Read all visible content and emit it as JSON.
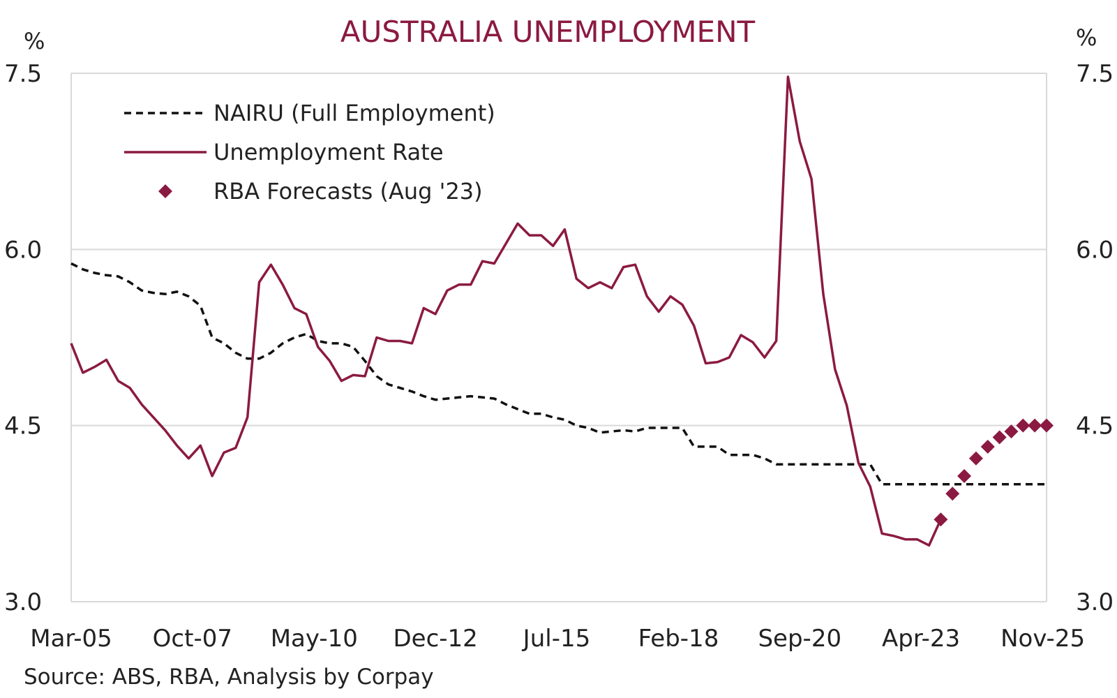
{
  "chart_data": {
    "type": "line",
    "title": "AUSTRALIA UNEMPLOYMENT",
    "y_unit_left": "%",
    "y_unit_right": "%",
    "ylim": [
      3.0,
      7.5
    ],
    "yticks": [
      "3.0",
      "4.5",
      "6.0",
      "7.5"
    ],
    "y_tick_values": [
      3.0,
      4.5,
      6.0,
      7.5
    ],
    "x_range": [
      2005.0,
      2025.75
    ],
    "xticks": [
      {
        "label": "Mar-05",
        "value": 2005.0
      },
      {
        "label": "Oct-07",
        "value": 2007.58
      },
      {
        "label": "May-10",
        "value": 2010.17
      },
      {
        "label": "Dec-12",
        "value": 2012.75
      },
      {
        "label": "Jul-15",
        "value": 2015.33
      },
      {
        "label": "Feb-18",
        "value": 2017.92
      },
      {
        "label": "Sep-20",
        "value": 2020.5
      },
      {
        "label": "Apr-23",
        "value": 2023.08
      },
      {
        "label": "Nov-25",
        "value": 2025.67
      }
    ],
    "grid": "horizontal",
    "legend_position": "top-left",
    "colors": {
      "unemployment": "#8b1a42",
      "nairu": "#111111",
      "forecast": "#8b1a42",
      "grid": "#d9d9d9",
      "title": "#8b1a42"
    },
    "series": [
      {
        "name": "NAIRU (Full Employment)",
        "style": "dashed",
        "points": [
          [
            2005.0,
            5.88
          ],
          [
            2005.25,
            5.83
          ],
          [
            2005.5,
            5.8
          ],
          [
            2005.75,
            5.78
          ],
          [
            2006.0,
            5.77
          ],
          [
            2006.25,
            5.72
          ],
          [
            2006.5,
            5.65
          ],
          [
            2006.75,
            5.63
          ],
          [
            2007.0,
            5.62
          ],
          [
            2007.25,
            5.64
          ],
          [
            2007.5,
            5.6
          ],
          [
            2007.75,
            5.52
          ],
          [
            2008.0,
            5.25
          ],
          [
            2008.25,
            5.2
          ],
          [
            2008.5,
            5.12
          ],
          [
            2008.75,
            5.07
          ],
          [
            2009.0,
            5.07
          ],
          [
            2009.25,
            5.12
          ],
          [
            2009.5,
            5.2
          ],
          [
            2009.75,
            5.25
          ],
          [
            2010.0,
            5.28
          ],
          [
            2010.25,
            5.22
          ],
          [
            2010.5,
            5.2
          ],
          [
            2010.75,
            5.2
          ],
          [
            2011.0,
            5.17
          ],
          [
            2011.25,
            5.05
          ],
          [
            2011.5,
            4.92
          ],
          [
            2011.75,
            4.85
          ],
          [
            2012.0,
            4.82
          ],
          [
            2012.25,
            4.79
          ],
          [
            2012.5,
            4.75
          ],
          [
            2012.75,
            4.72
          ],
          [
            2013.0,
            4.73
          ],
          [
            2013.25,
            4.74
          ],
          [
            2013.5,
            4.75
          ],
          [
            2013.75,
            4.74
          ],
          [
            2014.0,
            4.73
          ],
          [
            2014.25,
            4.68
          ],
          [
            2014.5,
            4.64
          ],
          [
            2014.75,
            4.6
          ],
          [
            2015.0,
            4.6
          ],
          [
            2015.25,
            4.57
          ],
          [
            2015.5,
            4.55
          ],
          [
            2015.75,
            4.5
          ],
          [
            2016.0,
            4.48
          ],
          [
            2016.25,
            4.44
          ],
          [
            2016.5,
            4.45
          ],
          [
            2016.75,
            4.46
          ],
          [
            2017.0,
            4.45
          ],
          [
            2017.25,
            4.48
          ],
          [
            2017.5,
            4.48
          ],
          [
            2017.75,
            4.48
          ],
          [
            2018.0,
            4.48
          ],
          [
            2018.25,
            4.32
          ],
          [
            2018.5,
            4.32
          ],
          [
            2018.75,
            4.32
          ],
          [
            2019.0,
            4.25
          ],
          [
            2019.25,
            4.25
          ],
          [
            2019.5,
            4.25
          ],
          [
            2019.75,
            4.22
          ],
          [
            2020.0,
            4.17
          ],
          [
            2020.5,
            4.17
          ],
          [
            2021.0,
            4.17
          ],
          [
            2021.5,
            4.17
          ],
          [
            2022.0,
            4.17
          ],
          [
            2022.25,
            4.0
          ],
          [
            2023.0,
            4.0
          ],
          [
            2024.0,
            4.0
          ],
          [
            2025.0,
            4.0
          ],
          [
            2025.75,
            4.0
          ]
        ]
      },
      {
        "name": "Unemployment Rate",
        "style": "solid",
        "points": [
          [
            2005.0,
            5.2
          ],
          [
            2005.25,
            4.95
          ],
          [
            2005.5,
            5.0
          ],
          [
            2005.75,
            5.06
          ],
          [
            2006.0,
            4.88
          ],
          [
            2006.25,
            4.82
          ],
          [
            2006.5,
            4.68
          ],
          [
            2006.75,
            4.57
          ],
          [
            2007.0,
            4.46
          ],
          [
            2007.25,
            4.33
          ],
          [
            2007.5,
            4.22
          ],
          [
            2007.75,
            4.33
          ],
          [
            2008.0,
            4.07
          ],
          [
            2008.25,
            4.27
          ],
          [
            2008.5,
            4.31
          ],
          [
            2008.75,
            4.57
          ],
          [
            2009.0,
            5.72
          ],
          [
            2009.25,
            5.87
          ],
          [
            2009.5,
            5.7
          ],
          [
            2009.75,
            5.5
          ],
          [
            2010.0,
            5.45
          ],
          [
            2010.25,
            5.17
          ],
          [
            2010.5,
            5.05
          ],
          [
            2010.75,
            4.88
          ],
          [
            2011.0,
            4.93
          ],
          [
            2011.25,
            4.92
          ],
          [
            2011.5,
            5.25
          ],
          [
            2011.75,
            5.22
          ],
          [
            2012.0,
            5.22
          ],
          [
            2012.25,
            5.2
          ],
          [
            2012.5,
            5.5
          ],
          [
            2012.75,
            5.45
          ],
          [
            2013.0,
            5.65
          ],
          [
            2013.25,
            5.7
          ],
          [
            2013.5,
            5.7
          ],
          [
            2013.75,
            5.9
          ],
          [
            2014.0,
            5.88
          ],
          [
            2014.25,
            6.05
          ],
          [
            2014.5,
            6.22
          ],
          [
            2014.75,
            6.12
          ],
          [
            2015.0,
            6.12
          ],
          [
            2015.25,
            6.03
          ],
          [
            2015.5,
            6.17
          ],
          [
            2015.75,
            5.75
          ],
          [
            2016.0,
            5.67
          ],
          [
            2016.25,
            5.72
          ],
          [
            2016.5,
            5.67
          ],
          [
            2016.75,
            5.85
          ],
          [
            2017.0,
            5.87
          ],
          [
            2017.25,
            5.6
          ],
          [
            2017.5,
            5.47
          ],
          [
            2017.75,
            5.6
          ],
          [
            2018.0,
            5.53
          ],
          [
            2018.25,
            5.35
          ],
          [
            2018.5,
            5.03
          ],
          [
            2018.75,
            5.04
          ],
          [
            2019.0,
            5.08
          ],
          [
            2019.25,
            5.27
          ],
          [
            2019.5,
            5.21
          ],
          [
            2019.75,
            5.08
          ],
          [
            2020.0,
            5.22
          ],
          [
            2020.25,
            7.47
          ],
          [
            2020.5,
            6.92
          ],
          [
            2020.75,
            6.6
          ],
          [
            2021.0,
            5.62
          ],
          [
            2021.25,
            4.98
          ],
          [
            2021.5,
            4.67
          ],
          [
            2021.75,
            4.18
          ],
          [
            2022.0,
            3.98
          ],
          [
            2022.25,
            3.58
          ],
          [
            2022.5,
            3.56
          ],
          [
            2022.75,
            3.53
          ],
          [
            2023.0,
            3.53
          ],
          [
            2023.25,
            3.48
          ],
          [
            2023.5,
            3.7
          ]
        ]
      },
      {
        "name": "RBA Forecasts (Aug '23)",
        "style": "markers",
        "points": [
          [
            2023.5,
            3.7
          ],
          [
            2023.75,
            3.92
          ],
          [
            2024.0,
            4.07
          ],
          [
            2024.25,
            4.22
          ],
          [
            2024.5,
            4.32
          ],
          [
            2024.75,
            4.4
          ],
          [
            2025.0,
            4.45
          ],
          [
            2025.25,
            4.5
          ],
          [
            2025.5,
            4.5
          ],
          [
            2025.75,
            4.5
          ]
        ]
      }
    ],
    "source": "Source: ABS, RBA, Analysis by Corpay"
  }
}
